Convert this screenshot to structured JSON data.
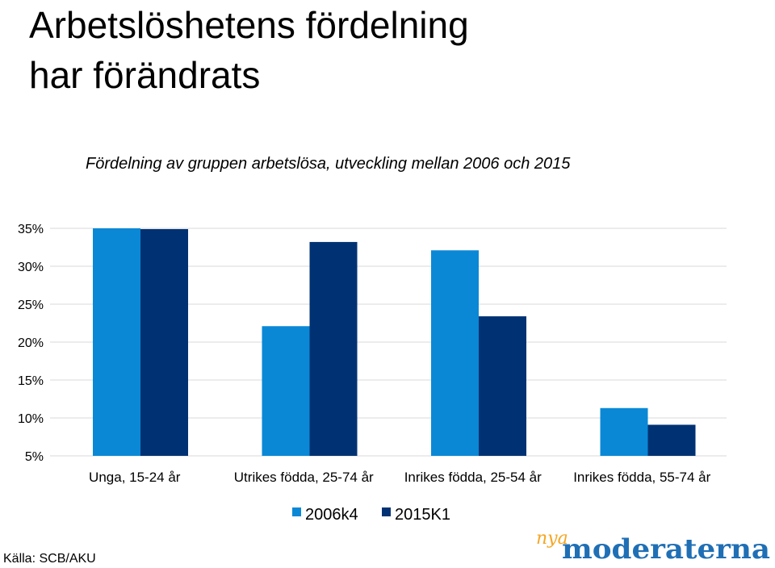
{
  "title_line1": "Arbetslöshetens fördelning",
  "title_line2": "har förändrats",
  "subtitle": "Fördelning av gruppen arbetslösa, utveckling mellan 2006 och 2015",
  "source": "Källa: SCB/AKU",
  "logo": {
    "prefix": "nya",
    "name": "moderaterna",
    "prefix_color": "#f5a623",
    "name_color": "#1f6fb5"
  },
  "chart_data": {
    "type": "bar",
    "title": "",
    "xlabel": "",
    "ylabel": "",
    "categories": [
      "Unga, 15-24 år",
      "Utrikes födda, 25-74 år",
      "Inrikes födda, 25-54 år",
      "Inrikes födda, 55-74 år"
    ],
    "series": [
      {
        "name": "2006k4",
        "color": "#0a88d6",
        "values": [
          35.0,
          22.1,
          32.1,
          11.3
        ]
      },
      {
        "name": "2015K1",
        "color": "#003273",
        "values": [
          34.9,
          33.2,
          23.4,
          9.1
        ]
      }
    ],
    "ylim": [
      5,
      35
    ],
    "yticks": [
      5,
      10,
      15,
      20,
      25,
      30,
      35
    ],
    "ytick_labels": [
      "5%",
      "10%",
      "15%",
      "20%",
      "25%",
      "30%",
      "35%"
    ],
    "grid": true,
    "legend_position": "bottom"
  }
}
